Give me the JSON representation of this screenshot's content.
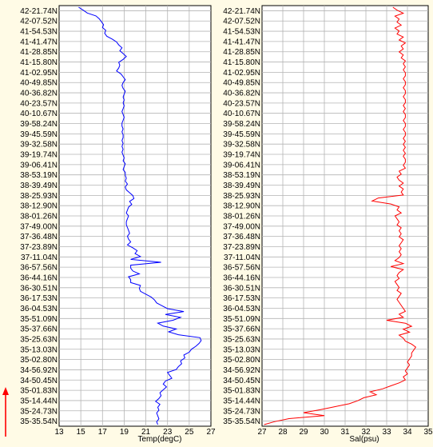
{
  "colors": {
    "page_background": "#fffbe6",
    "plot_background": "#ffffff",
    "gridline": "#b4b4b4",
    "temperature_line": "#0000ff",
    "salinity_line": "#ff0000",
    "direction_arrow": "#ff0000"
  },
  "latitude_labels": [
    "42-21.74N",
    "42-07.52N",
    "41-54.53N",
    "41-41.47N",
    "41-28.85N",
    "41-15.80N",
    "41-02.95N",
    "40-49.85N",
    "40-36.82N",
    "40-23.57N",
    "40-10.67N",
    "39-58.24N",
    "39-45.59N",
    "39-32.58N",
    "39-19.74N",
    "39-06.41N",
    "38-53.19N",
    "38-39.49N",
    "38-25.93N",
    "38-12.90N",
    "38-01.26N",
    "37-49.00N",
    "37-36.48N",
    "37-23.89N",
    "37-11.04N",
    "36-57.56N",
    "36-44.16N",
    "36-30.51N",
    "36-17.53N",
    "36-04.53N",
    "35-51.09N",
    "35-37.66N",
    "35-25.63N",
    "35-13.03N",
    "35-02.80N",
    "34-56.92N",
    "34-50.45N",
    "35-01.83N",
    "35-14.44N",
    "35-24.73N",
    "35-35.54N"
  ],
  "direction_arrow_icon": "up-arrow-icon",
  "chart_data": [
    {
      "type": "line",
      "xlabel": "Temp(degC)",
      "xlim": [
        13,
        27
      ],
      "x_ticks": [
        13,
        15,
        17,
        19,
        21,
        23,
        25,
        27
      ],
      "grid": true,
      "orientation": "profile along track (value on x, station on y)",
      "series": [
        {
          "values": [
            14.8,
            15.2,
            15.6,
            16.4,
            16.7,
            16.9,
            17.1,
            17.0,
            17.3,
            17.2,
            17.4,
            17.9,
            18.3,
            18.5,
            18.8,
            18.6,
            18.9,
            19.2,
            18.9,
            18.5,
            18.6,
            18.5,
            18.3,
            18.7,
            18.9,
            19.1,
            18.9,
            18.8,
            18.9,
            19.1,
            19.0,
            18.9,
            19.0,
            18.9,
            19.0,
            18.9,
            18.8,
            18.9,
            19.0,
            18.9,
            18.8,
            18.8,
            18.9,
            18.8,
            18.9,
            18.9,
            18.8,
            18.9,
            18.8,
            18.9,
            18.8,
            18.9,
            19.0,
            18.9,
            19.1,
            19.0,
            18.9,
            19.1,
            19.1,
            19.2,
            19.1,
            19.3,
            19.1,
            19.2,
            19.5,
            19.8,
            19.9,
            19.5,
            19.7,
            19.4,
            19.3,
            19.2,
            19.4,
            19.3,
            19.2,
            19.2,
            19.3,
            19.4,
            19.5,
            19.3,
            19.4,
            19.6,
            19.3,
            19.8,
            20.2,
            20.0,
            20.5,
            19.6,
            22.4,
            19.6,
            19.6,
            19.8,
            20.4,
            19.4,
            19.6,
            19.6,
            20.5,
            20.4,
            20.5,
            21.0,
            21.5,
            21.8,
            22.0,
            22.5,
            23.0,
            24.5,
            22.8,
            24.2,
            23.5,
            22.1,
            22.6,
            23.8,
            23.1,
            24.0,
            26.0,
            26.1,
            25.9,
            25.6,
            25.2,
            25.0,
            24.5,
            24.6,
            24.2,
            24.3,
            24.0,
            23.8,
            23.0,
            23.2,
            23.4,
            22.8,
            22.6,
            22.9,
            22.6,
            22.3,
            22.4,
            22.2,
            21.9,
            22.3,
            22.1,
            22.2,
            22.0,
            22.1,
            22.2,
            22.0,
            22.1
          ]
        }
      ]
    },
    {
      "type": "line",
      "xlabel": "Sal(psu)",
      "xlim": [
        27,
        35
      ],
      "x_ticks": [
        27,
        28,
        29,
        30,
        31,
        32,
        33,
        34,
        35
      ],
      "grid": true,
      "orientation": "profile along track (value on x, station on y)",
      "series": [
        {
          "values": [
            33.3,
            33.5,
            33.8,
            33.4,
            33.6,
            33.5,
            33.7,
            33.4,
            33.6,
            33.5,
            33.8,
            33.6,
            33.9,
            33.7,
            33.8,
            33.6,
            33.8,
            33.7,
            33.9,
            33.8,
            33.9,
            33.8,
            33.9,
            33.9,
            33.8,
            33.9,
            33.9,
            33.8,
            33.9,
            33.9,
            33.8,
            33.9,
            33.9,
            33.8,
            33.9,
            33.8,
            33.9,
            33.9,
            33.8,
            33.9,
            33.9,
            33.8,
            33.9,
            33.9,
            33.8,
            33.9,
            33.8,
            33.9,
            33.8,
            33.9,
            33.8,
            33.9,
            33.9,
            33.8,
            33.9,
            33.6,
            33.7,
            33.5,
            33.6,
            33.8,
            33.6,
            33.8,
            33.7,
            33.8,
            32.6,
            32.3,
            33.2,
            33.6,
            33.5,
            33.7,
            33.4,
            33.5,
            33.6,
            33.5,
            33.7,
            33.6,
            33.7,
            33.6,
            33.8,
            33.7,
            33.6,
            33.7,
            33.6,
            33.7,
            33.6,
            33.4,
            33.8,
            33.2,
            33.8,
            33.6,
            33.5,
            33.6,
            33.4,
            33.5,
            33.6,
            33.5,
            33.7,
            33.6,
            33.5,
            33.6,
            33.7,
            33.8,
            33.9,
            33.6,
            33.8,
            33.0,
            33.9,
            34.2,
            33.8,
            34.1,
            33.6,
            33.8,
            33.9,
            34.2,
            34.4,
            34.3,
            34.2,
            34.2,
            34.1,
            34.0,
            34.1,
            34.0,
            33.9,
            34.0,
            33.8,
            33.9,
            33.6,
            33.2,
            32.8,
            32.2,
            32.5,
            31.9,
            31.6,
            31.2,
            30.5,
            29.8,
            29.0,
            30.0,
            28.3,
            27.6,
            27.1
          ]
        }
      ]
    }
  ]
}
